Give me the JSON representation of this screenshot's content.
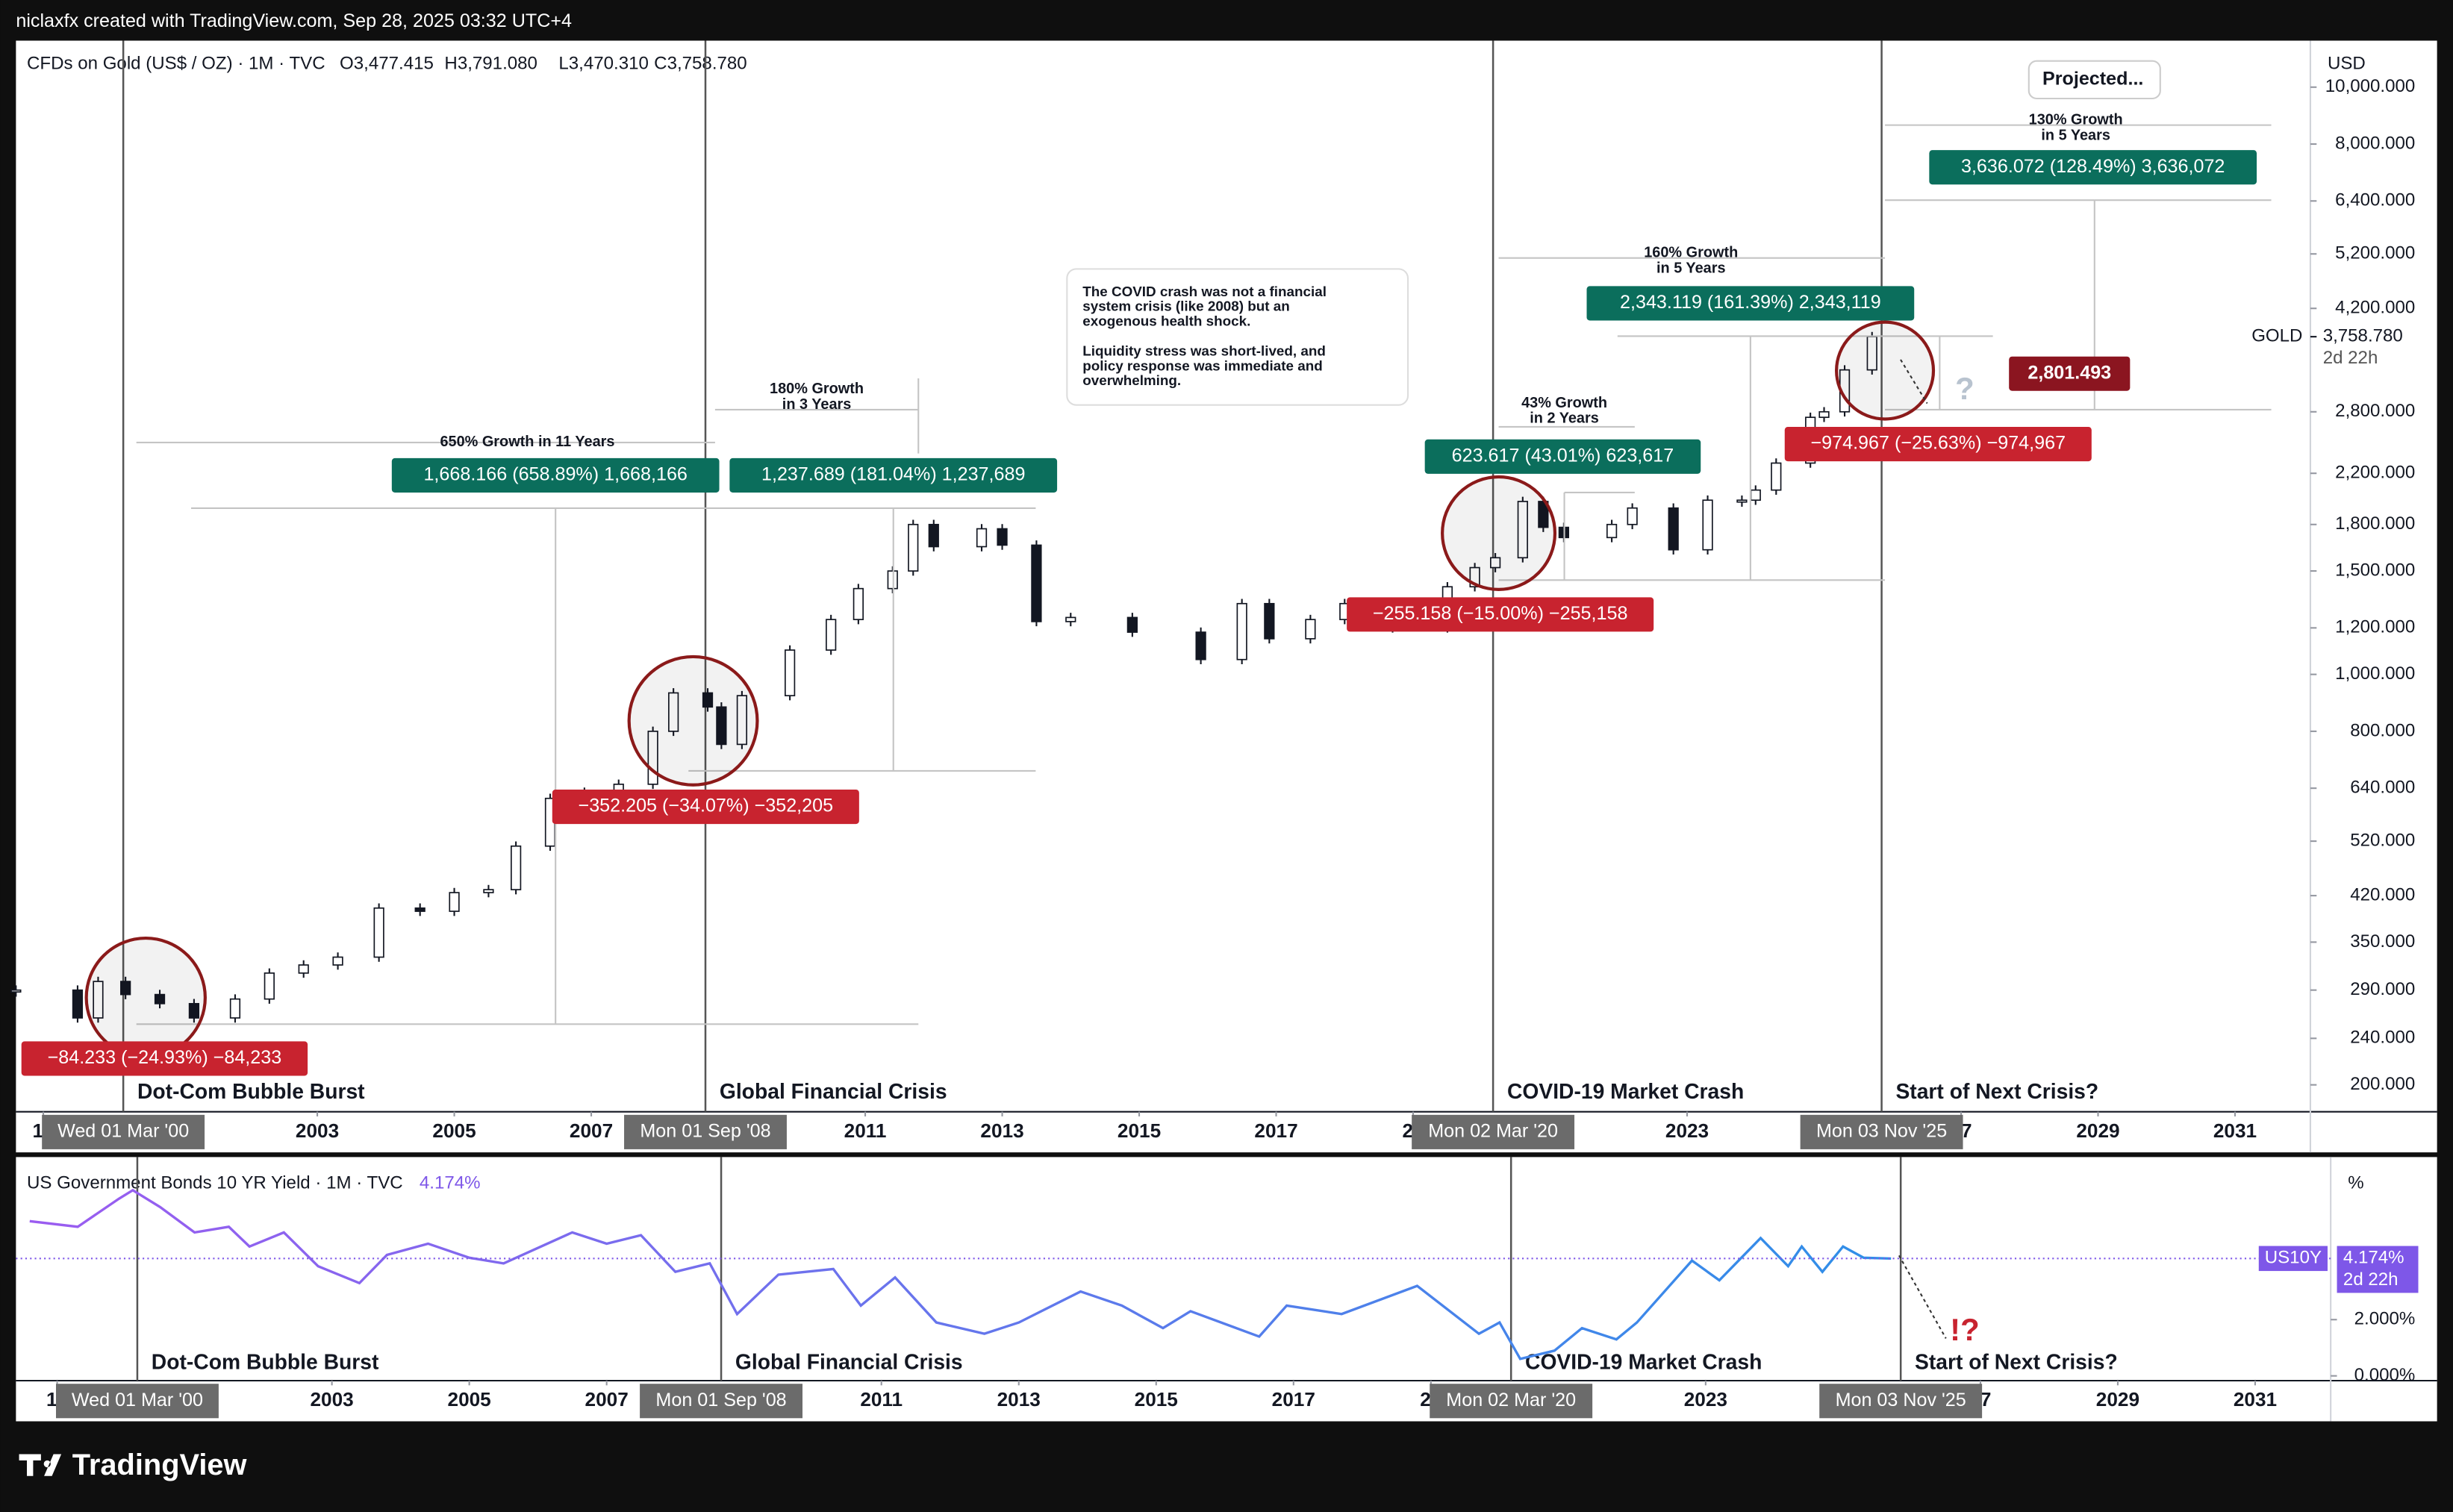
{
  "header": {
    "text": "niclaxfx created with TradingView.com, Sep 28, 2025 03:32 UTC+4"
  },
  "footer": {
    "logo": "TradingView"
  },
  "chart_data": [
    {
      "type": "candlestick",
      "title": "CFDs on Gold (US$ / OZ) · 1M · TVC",
      "ohlc": [
        "O3,477.415",
        "H3,791.080",
        "L3,470.310",
        "C3,758.780"
      ],
      "currency": "USD",
      "log_scale": true,
      "grid": false,
      "color": "#131722",
      "x": [
        1998.6,
        1999.5,
        1999.8,
        2000.2,
        2000.7,
        2001.2,
        2001.8,
        2002.3,
        2002.8,
        2003.3,
        2003.9,
        2004.5,
        2005.0,
        2005.5,
        2005.9,
        2006.4,
        2006.9,
        2007.4,
        2007.9,
        2008.2,
        2008.7,
        2008.9,
        2009.2,
        2009.9,
        2010.5,
        2010.9,
        2011.4,
        2011.7,
        2012.0,
        2012.7,
        2013.0,
        2013.5,
        2014.0,
        2014.9,
        2015.9,
        2016.5,
        2016.9,
        2017.5,
        2018.0,
        2018.7,
        2019.5,
        2019.9,
        2020.2,
        2020.6,
        2020.9,
        2021.2,
        2021.9,
        2022.2,
        2022.8,
        2023.3,
        2023.8,
        2024.0,
        2024.3,
        2024.8,
        2025.0,
        2025.3,
        2025.7
      ],
      "values": [
        290,
        260,
        300,
        285,
        275,
        260,
        280,
        310,
        320,
        330,
        400,
        395,
        425,
        430,
        510,
        615,
        630,
        650,
        800,
        930,
        880,
        760,
        920,
        1100,
        1240,
        1400,
        1500,
        1800,
        1650,
        1770,
        1660,
        1230,
        1250,
        1180,
        1060,
        1320,
        1150,
        1240,
        1320,
        1200,
        1410,
        1520,
        1580,
        1970,
        1780,
        1710,
        1800,
        1920,
        1630,
        1980,
        1980,
        2060,
        2290,
        2740,
        2800,
        3300,
        3760
      ],
      "xlim": [
        1998.6,
        2032.1
      ],
      "xticks": [
        {
          "value": 1999,
          "label": "19"
        },
        2003,
        2005,
        2007,
        2011,
        2013,
        2015,
        2017,
        {
          "value": 2019,
          "label": "20"
        },
        2023,
        {
          "value": 2027,
          "label": "27"
        },
        2029,
        2031
      ],
      "ylim": [
        180,
        12000
      ],
      "yticks": [
        {
          "value": 200,
          "label": "200.000"
        },
        {
          "value": 240,
          "label": "240.000"
        },
        {
          "value": 290,
          "label": "290.000"
        },
        {
          "value": 350,
          "label": "350.000"
        },
        {
          "value": 420,
          "label": "420.000"
        },
        {
          "value": 520,
          "label": "520.000"
        },
        {
          "value": 640,
          "label": "640.000"
        },
        {
          "value": 800,
          "label": "800.000"
        },
        {
          "value": 1000,
          "label": "1,000.000"
        },
        {
          "value": 1200,
          "label": "1,200.000"
        },
        {
          "value": 1500,
          "label": "1,500.000"
        },
        {
          "value": 1800,
          "label": "1,800.000"
        },
        {
          "value": 2200,
          "label": "2,200.000"
        },
        {
          "value": 2800,
          "label": "2,800.000"
        },
        {
          "value": 4200,
          "label": "4,200.000"
        },
        {
          "value": 5200,
          "label": "5,200.000"
        },
        {
          "value": 6400,
          "label": "6,400.000"
        },
        {
          "value": 8000,
          "label": "8,000.000"
        },
        {
          "value": 10000,
          "label": "10,000.000"
        }
      ],
      "last": {
        "symbol": "GOLD",
        "value": 3758.78,
        "label": "3,758.780",
        "countdown": "2d 22h",
        "color": "#131722"
      },
      "date_markers": [
        {
          "value": 2000.167,
          "label": "Wed 01 Mar '00"
        },
        {
          "value": 2008.667,
          "label": "Mon 01 Sep '08"
        },
        {
          "value": 2020.167,
          "label": "Mon 02 Mar '20"
        },
        {
          "value": 2025.84,
          "label": "Mon 03 Nov '25"
        }
      ],
      "events": [
        "Dot-Com Bubble Burst",
        "Global Financial Crisis",
        "COVID-19 Market Crash",
        "Start of Next Crisis?"
      ],
      "annotations": [
        [
          "650% Growth in 11 Years"
        ],
        [
          "1,668.166 (658.89%) 1,668,166"
        ],
        [
          "180% Growth",
          "in 3 Years"
        ],
        [
          "1,237.689 (181.04%) 1,237,689"
        ],
        [
          "−352.205 (−34.07%) −352,205"
        ],
        [
          "−84.233 (−24.93%) −84,233"
        ],
        [
          "The COVID crash was not a financial",
          "system crisis (like 2008) but an",
          "exogenous health shock.",
          "Liquidity stress was short-lived, and",
          "policy response was immediate and",
          "overwhelming."
        ],
        [
          "43% Growth",
          "in 2 Years"
        ],
        [
          "623.617 (43.01%) 623,617"
        ],
        [
          "−255.158 (−15.00%) −255,158"
        ],
        [
          "160% Growth",
          "in 5 Years"
        ],
        [
          "2,343.119 (161.39%) 2,343,119"
        ],
        [
          "−974.967 (−25.63%) −974,967"
        ],
        [
          "2,801.493"
        ],
        [
          "?"
        ],
        [
          "Projected..."
        ],
        [
          "130% Growth",
          "in 5 Years"
        ],
        [
          "3,636.072 (128.49%) 3,636,072"
        ]
      ]
    },
    {
      "type": "line",
      "title": "US Government Bonds 10 YR Yield · 1M · TVC",
      "legend_value": "4.174%",
      "currency": "%",
      "log_scale": false,
      "grid": false,
      "colors": [
        "#9b5cf0",
        "#2f8fe8"
      ],
      "x": [
        1998.6,
        1999.3,
        1999.9,
        2000.1,
        2000.5,
        2001.0,
        2001.5,
        2001.8,
        2002.3,
        2002.8,
        2003.4,
        2003.8,
        2004.4,
        2005.0,
        2005.5,
        2006.5,
        2007.0,
        2007.5,
        2008.0,
        2008.5,
        2008.9,
        2009.5,
        2010.3,
        2010.7,
        2011.2,
        2011.8,
        2012.5,
        2013.0,
        2013.9,
        2014.5,
        2015.1,
        2015.5,
        2016.5,
        2016.9,
        2017.7,
        2018.8,
        2019.7,
        2020.0,
        2020.3,
        2020.8,
        2021.2,
        2021.7,
        2022.0,
        2022.8,
        2023.2,
        2023.8,
        2024.2,
        2024.4,
        2024.7,
        2025.0,
        2025.3,
        2025.7
      ],
      "values": [
        5.5,
        5.3,
        6.3,
        6.6,
        6.0,
        5.1,
        5.3,
        4.6,
        5.1,
        3.9,
        3.3,
        4.3,
        4.7,
        4.2,
        4.0,
        5.1,
        4.7,
        5.0,
        3.7,
        4.0,
        2.2,
        3.6,
        3.8,
        2.5,
        3.5,
        1.9,
        1.5,
        1.9,
        3.0,
        2.5,
        1.7,
        2.3,
        1.4,
        2.5,
        2.2,
        3.2,
        1.5,
        1.9,
        0.6,
        0.9,
        1.7,
        1.3,
        1.9,
        4.1,
        3.4,
        4.9,
        3.9,
        4.6,
        3.7,
        4.6,
        4.2,
        4.17
      ],
      "xlim": [
        1998.4,
        2032.1
      ],
      "xticks": [
        {
          "value": 1999,
          "label": "19"
        },
        2003,
        2005,
        2007,
        2011,
        2013,
        2015,
        2017,
        {
          "value": 2019,
          "label": "20"
        },
        2023,
        {
          "value": 2027,
          "label": "27"
        },
        2029,
        2031
      ],
      "ylim": [
        -0.17,
        7.78
      ],
      "yticks": [
        {
          "value": 0,
          "label": "0.000%"
        },
        {
          "value": 2,
          "label": "2.000%"
        }
      ],
      "last": {
        "symbol": "US10Y",
        "value": 4.174,
        "label": "4.174%",
        "countdown": "2d 22h",
        "color": "#7e57e8"
      },
      "date_markers": [
        {
          "value": 2000.167,
          "label": "Wed 01 Mar '00"
        },
        {
          "value": 2008.667,
          "label": "Mon 01 Sep '08"
        },
        {
          "value": 2020.167,
          "label": "Mon 02 Mar '20"
        },
        {
          "value": 2025.84,
          "label": "Mon 03 Nov '25"
        }
      ],
      "events": [
        "Dot-Com Bubble Burst",
        "Global Financial Crisis",
        "COVID-19 Market Crash",
        "Start of Next Crisis?"
      ],
      "annotations": [
        [
          "!?"
        ]
      ]
    }
  ]
}
